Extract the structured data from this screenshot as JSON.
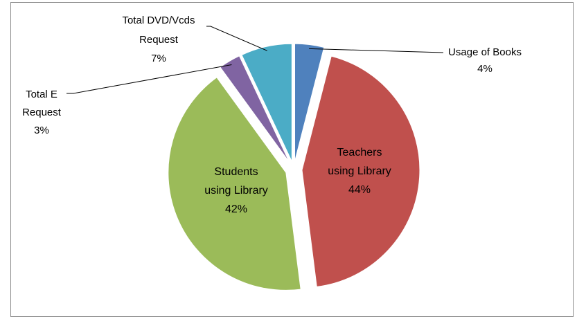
{
  "chart_data": {
    "type": "pie",
    "title": "",
    "start_angle_deg": 0,
    "slices": [
      {
        "name": "Usage of Books",
        "value": 4,
        "label_text": "4%",
        "color": "#4f81bd"
      },
      {
        "name": "Teachers using Library",
        "value": 44,
        "label_text": "44%",
        "color": "#c0504d"
      },
      {
        "name": "Students using Library",
        "value": 42,
        "label_text": "42%",
        "color": "#9bbb59"
      },
      {
        "name": "Total E Request",
        "value": 3,
        "label_text": "3%",
        "color": "#8064a2"
      },
      {
        "name": "Total DVD/Vcds Request",
        "value": 7,
        "label_text": "7%",
        "color": "#4bacc6"
      }
    ],
    "labels": {
      "usage_books": [
        "Usage of Books",
        "4%"
      ],
      "teachers": [
        "Teachers",
        "using Library",
        "44%"
      ],
      "students": [
        "Students",
        "using Library",
        "42%"
      ],
      "total_e": [
        "Total E",
        "Request",
        "3%"
      ],
      "total_dvd": [
        "Total DVD/Vcds",
        "Request",
        "7%"
      ]
    },
    "legend": "none"
  }
}
